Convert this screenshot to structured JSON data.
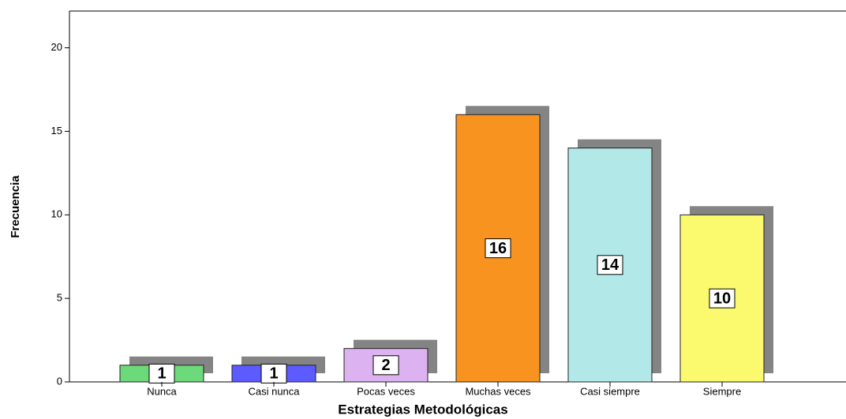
{
  "chart_data": {
    "type": "bar",
    "x_label": "Estrategias Metodológicas",
    "y_label": "Frecuencia",
    "categories": [
      "Nunca",
      "Casi nunca",
      "Pocas veces",
      "Muchas veces",
      "Casi siempre",
      "Siempre"
    ],
    "values": [
      1,
      1,
      2,
      16,
      14,
      10
    ],
    "colors": [
      "#6cd97a",
      "#5b5bff",
      "#dcb2f0",
      "#f7931e",
      "#b3e8e8",
      "#fbf96e"
    ],
    "ylim": [
      0,
      22.2
    ],
    "yticks": [
      0,
      5,
      10,
      15,
      20
    ],
    "shadow": true
  }
}
